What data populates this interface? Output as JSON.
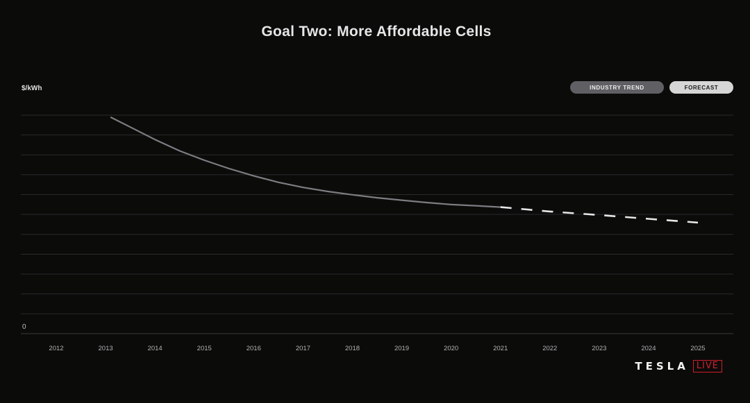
{
  "chart_data": {
    "type": "line",
    "title": "Goal Two: More Affordable Cells",
    "ylabel": "$/kWh",
    "y_tick_labels": [
      "0"
    ],
    "categories": [
      "2012",
      "2013",
      "2014",
      "2015",
      "2016",
      "2017",
      "2018",
      "2019",
      "2020",
      "2021",
      "2022",
      "2023",
      "2024",
      "2025"
    ],
    "ylim": [
      0,
      11
    ],
    "grid": true,
    "legend_position": "top-right",
    "series": [
      {
        "name": "INDUSTRY TREND",
        "style": "solid",
        "color": "#7d7d82",
        "x": [
          2013.1,
          2013.5,
          2014,
          2014.5,
          2015,
          2015.5,
          2016,
          2016.5,
          2017,
          2017.5,
          2018,
          2018.5,
          2019,
          2019.5,
          2020,
          2020.5,
          2021
        ],
        "y": [
          10.9,
          10.4,
          9.77,
          9.2,
          8.73,
          8.31,
          7.94,
          7.62,
          7.36,
          7.16,
          6.99,
          6.84,
          6.72,
          6.6,
          6.5,
          6.44,
          6.37
        ]
      },
      {
        "name": "FORECAST",
        "style": "dashed",
        "color": "#e6e6e6",
        "x": [
          2021,
          2022,
          2023,
          2024,
          2025
        ],
        "y": [
          6.37,
          6.15,
          5.97,
          5.78,
          5.59
        ]
      }
    ]
  },
  "legend": {
    "industry_trend": {
      "label": "INDUSTRY TREND",
      "bg": "#5f5f64",
      "text": "#eeeeee"
    },
    "forecast": {
      "label": "FORECAST",
      "bg": "#d6d6d6",
      "text": "#1a1a1a"
    }
  },
  "brand": {
    "name": "TESLA",
    "badge": "LIVE"
  }
}
